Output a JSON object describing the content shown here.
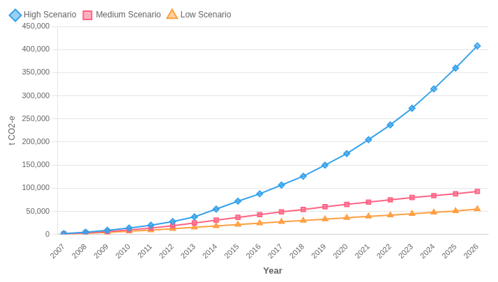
{
  "chart_data": {
    "type": "line",
    "xlabel": "Year",
    "ylabel": "t CO2-e",
    "x": [
      2007,
      2008,
      2009,
      2010,
      2011,
      2012,
      2013,
      2014,
      2015,
      2016,
      2017,
      2018,
      2019,
      2020,
      2021,
      2022,
      2023,
      2024,
      2025,
      2026
    ],
    "series": [
      {
        "name": "High Scenario",
        "marker": "diamond",
        "line_style": "solid",
        "values": [
          2000,
          5000,
          9000,
          14000,
          20000,
          28000,
          38000,
          55000,
          72000,
          88000,
          107000,
          126000,
          150000,
          175000,
          205000,
          237000,
          273000,
          315000,
          360000,
          408000
        ]
      },
      {
        "name": "Medium Scenario",
        "marker": "square",
        "line_style": "solid",
        "values": [
          1500,
          3500,
          6500,
          10000,
          14000,
          19000,
          25000,
          31000,
          37000,
          43000,
          49000,
          54000,
          60000,
          65000,
          70000,
          75000,
          80000,
          84000,
          88000,
          93000
        ]
      },
      {
        "name": "Low Scenario",
        "marker": "triangle",
        "line_style": "solid",
        "values": [
          1000,
          2500,
          4500,
          7000,
          9500,
          12500,
          15500,
          18500,
          21500,
          24500,
          27500,
          30000,
          33000,
          36000,
          39000,
          42000,
          45000,
          48000,
          51000,
          55000
        ]
      }
    ],
    "xlim": [
      2006.7,
      2026.5
    ],
    "xticks": [
      2007,
      2008,
      2009,
      2010,
      2011,
      2012,
      2013,
      2014,
      2015,
      2016,
      2017,
      2018,
      2019,
      2020,
      2021,
      2022,
      2023,
      2024,
      2025,
      2026
    ],
    "ylim": [
      0,
      450000
    ],
    "yticks": [
      0,
      {
        "value": 50000,
        "label": "50,000"
      },
      {
        "value": 100000,
        "label": "100,000"
      },
      {
        "value": 150000,
        "label": "150,000"
      },
      {
        "value": 200000,
        "label": "200,000"
      },
      {
        "value": 250000,
        "label": "250,000"
      },
      {
        "value": 300000,
        "label": "300,000"
      },
      {
        "value": 350000,
        "label": "350,000"
      },
      {
        "value": 400000,
        "label": "400,000"
      },
      {
        "value": 450000,
        "label": "450,000"
      }
    ],
    "grid": "y",
    "legend": "upper left"
  }
}
